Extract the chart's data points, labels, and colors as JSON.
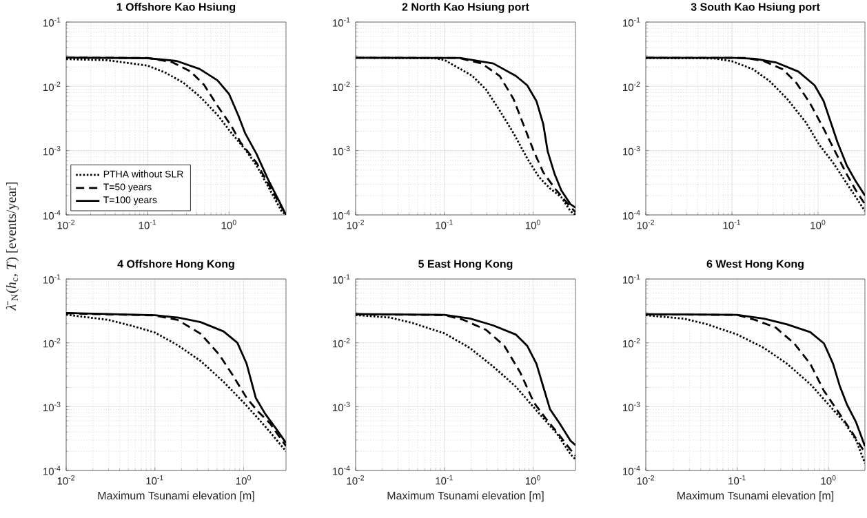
{
  "chart_data": [
    {
      "type": "line",
      "title": "1 Offshore Kao Hsiung",
      "ylabel": "*λ̄*$_{N}$(*h*$_{c}$, *T*) [events/year]",
      "log": "xy",
      "grid": true,
      "legend": "bottom left",
      "xlim": [
        0.01,
        5
      ],
      "ylim": [
        0.0001,
        0.1
      ],
      "xticks": [
        {
          "value": 0.01,
          "label": "10$^{-2}$"
        },
        {
          "value": 0.1,
          "label": "10$^{-1}$"
        },
        {
          "value": 1,
          "label": "10$^{0}$"
        }
      ],
      "yticks": [
        {
          "value": 0.0001,
          "label": "10$^{-4}$"
        },
        {
          "value": 0.001,
          "label": "10$^{-3}$"
        },
        {
          "value": 0.01,
          "label": "10$^{-2}$"
        },
        {
          "value": 0.1,
          "label": "10$^{-1}$"
        }
      ],
      "series": [
        {
          "name": "PTHA without SLR",
          "color": "#000000",
          "line_style": "dotted",
          "x": [
            0.01,
            0.032,
            0.1,
            0.164,
            0.275,
            0.435,
            0.72,
            1.07,
            1.57,
            2.17,
            3.0,
            4.4,
            5
          ],
          "values": [
            0.0265,
            0.0255,
            0.021,
            0.0164,
            0.0114,
            0.007,
            0.0036,
            0.00188,
            0.00105,
            0.00059,
            0.00028,
            0.000115,
            0.0001
          ]
        },
        {
          "name": "T=50 years",
          "color": "#000000",
          "line_style": "dashed",
          "x": [
            0.01,
            0.1,
            0.2,
            0.335,
            0.494,
            0.72,
            1.07,
            1.38,
            2.17,
            3.0,
            5
          ],
          "values": [
            0.028,
            0.0276,
            0.0238,
            0.0171,
            0.0105,
            0.005,
            0.0024,
            0.00135,
            0.00065,
            0.00031,
            0.0001
          ]
        },
        {
          "name": "T=100 years",
          "color": "#000000",
          "line_style": "solid",
          "x": [
            0.01,
            0.1,
            0.227,
            0.435,
            0.72,
            1.0,
            1.29,
            1.57,
            2.17,
            3.0,
            4.15,
            5
          ],
          "values": [
            0.028,
            0.0274,
            0.0248,
            0.0186,
            0.0124,
            0.0076,
            0.0036,
            0.00188,
            0.00089,
            0.00036,
            0.00016,
            0.0001
          ]
        }
      ]
    },
    {
      "type": "line",
      "title": "2 North Kao Hsiung port",
      "log": "xy",
      "grid": true,
      "xlim": [
        0.01,
        3
      ],
      "ylim": [
        0.0001,
        0.1
      ],
      "xticks": [
        {
          "value": 0.01,
          "label": "10$^{-2}$"
        },
        {
          "value": 0.1,
          "label": "10$^{-1}$"
        },
        {
          "value": 1,
          "label": "10$^{0}$"
        }
      ],
      "yticks": [
        {
          "value": 0.0001,
          "label": "10$^{-4}$"
        },
        {
          "value": 0.001,
          "label": "10$^{-3}$"
        },
        {
          "value": 0.01,
          "label": "10$^{-2}$"
        },
        {
          "value": 0.1,
          "label": "10$^{-1}$"
        }
      ],
      "series": [
        {
          "color": "#000000",
          "line_style": "dotted",
          "x": [
            0.01,
            0.08,
            0.1,
            0.145,
            0.207,
            0.295,
            0.42,
            0.6,
            0.857,
            1.16,
            1.54,
            2.08,
            2.63,
            3
          ],
          "values": [
            0.0279,
            0.0272,
            0.0257,
            0.0193,
            0.0145,
            0.0089,
            0.0042,
            0.00188,
            0.00076,
            0.00039,
            0.00026,
            0.000188,
            0.000115,
            0.0001
          ]
        },
        {
          "color": "#000000",
          "line_style": "dashed",
          "x": [
            0.01,
            0.145,
            0.263,
            0.42,
            0.6,
            0.81,
            1.02,
            1.3,
            1.75,
            2.48,
            3
          ],
          "values": [
            0.0279,
            0.0276,
            0.0227,
            0.0145,
            0.0064,
            0.0022,
            0.00097,
            0.00046,
            0.00026,
            0.000147,
            0.00011
          ]
        },
        {
          "color": "#000000",
          "line_style": "solid",
          "x": [
            0.01,
            0.15,
            0.355,
            0.64,
            0.857,
            1.09,
            1.3,
            1.46,
            1.75,
            2.08,
            2.63,
            3
          ],
          "values": [
            0.0279,
            0.0276,
            0.0227,
            0.0145,
            0.0104,
            0.0059,
            0.00259,
            0.00097,
            0.00043,
            0.00024,
            0.000147,
            0.00013
          ]
        }
      ]
    },
    {
      "type": "line",
      "title": "3 South Kao Hsiung port",
      "log": "xy",
      "grid": true,
      "xlim": [
        0.01,
        3.5
      ],
      "ylim": [
        0.0001,
        0.1
      ],
      "xticks": [
        {
          "value": 0.01,
          "label": "10$^{-2}$"
        },
        {
          "value": 0.1,
          "label": "10$^{-1}$"
        },
        {
          "value": 1,
          "label": "10$^{0}$"
        }
      ],
      "yticks": [
        {
          "value": 0.0001,
          "label": "10$^{-4}$"
        },
        {
          "value": 0.001,
          "label": "10$^{-3}$"
        },
        {
          "value": 0.01,
          "label": "10$^{-2}$"
        },
        {
          "value": 0.1,
          "label": "10$^{-1}$"
        }
      ],
      "series": [
        {
          "color": "#000000",
          "line_style": "dotted",
          "x": [
            0.01,
            0.062,
            0.1,
            0.175,
            0.27,
            0.437,
            0.715,
            1.03,
            1.49,
            2.15,
            2.75,
            3.5
          ],
          "values": [
            0.0275,
            0.0272,
            0.0246,
            0.0185,
            0.0123,
            0.0064,
            0.0028,
            0.00124,
            0.00065,
            0.00031,
            0.000188,
            0.000115
          ]
        },
        {
          "color": "#000000",
          "line_style": "dashed",
          "x": [
            0.01,
            0.145,
            0.237,
            0.387,
            0.56,
            0.81,
            1.16,
            1.68,
            2.15,
            2.75,
            3.5
          ],
          "values": [
            0.0279,
            0.0277,
            0.0246,
            0.0185,
            0.0113,
            0.0054,
            0.0022,
            0.00082,
            0.00043,
            0.00024,
            0.000147
          ]
        },
        {
          "color": "#000000",
          "line_style": "solid",
          "x": [
            0.01,
            0.1,
            0.186,
            0.323,
            0.59,
            0.91,
            1.16,
            1.4,
            1.68,
            2.15,
            2.75,
            3.5
          ],
          "values": [
            0.0279,
            0.0278,
            0.0268,
            0.0236,
            0.017,
            0.0104,
            0.0059,
            0.0028,
            0.00135,
            0.00059,
            0.00033,
            0.0002
          ]
        }
      ]
    },
    {
      "type": "line",
      "title": "4 Offshore Hong Kong",
      "xlabel": "Maximum Tsunami elevation [m]",
      "log": "xy",
      "grid": true,
      "xlim": [
        0.01,
        3
      ],
      "ylim": [
        0.0001,
        0.1
      ],
      "xticks": [
        {
          "value": 0.01,
          "label": "10$^{-2}$"
        },
        {
          "value": 0.1,
          "label": "10$^{-1}$"
        },
        {
          "value": 1,
          "label": "10$^{0}$"
        }
      ],
      "yticks": [
        {
          "value": 0.0001,
          "label": "10$^{-4}$"
        },
        {
          "value": 0.001,
          "label": "10$^{-3}$"
        },
        {
          "value": 0.01,
          "label": "10$^{-2}$"
        },
        {
          "value": 0.1,
          "label": "10$^{-1}$"
        }
      ],
      "series": [
        {
          "color": "#000000",
          "line_style": "dotted",
          "x": [
            0.01,
            0.0297,
            0.054,
            0.1,
            0.18,
            0.327,
            0.594,
            1.0,
            1.46,
            1.98,
            3
          ],
          "values": [
            0.0276,
            0.0229,
            0.0186,
            0.0145,
            0.0092,
            0.0052,
            0.00245,
            0.00116,
            0.00065,
            0.0004,
            0.0002
          ]
        },
        {
          "color": "#000000",
          "line_style": "dashed",
          "x": [
            0.01,
            0.1,
            0.18,
            0.327,
            0.527,
            0.755,
            1.08,
            1.46,
            1.98,
            3
          ],
          "values": [
            0.029,
            0.0268,
            0.0229,
            0.0139,
            0.0066,
            0.0031,
            0.00137,
            0.00083,
            0.00055,
            0.00024
          ]
        },
        {
          "color": "#000000",
          "line_style": "solid",
          "x": [
            0.01,
            0.1,
            0.18,
            0.327,
            0.594,
            0.85,
            1.08,
            1.37,
            1.75,
            2.35,
            3
          ],
          "values": [
            0.0294,
            0.027,
            0.0249,
            0.0211,
            0.0151,
            0.01,
            0.0047,
            0.00137,
            0.00077,
            0.00044,
            0.00027
          ]
        }
      ]
    },
    {
      "type": "line",
      "title": "5 East Hong Kong",
      "xlabel": "Maximum Tsunami elevation [m]",
      "log": "xy",
      "grid": true,
      "xlim": [
        0.01,
        3
      ],
      "ylim": [
        0.0001,
        0.1
      ],
      "xticks": [
        {
          "value": 0.01,
          "label": "10$^{-2}$"
        },
        {
          "value": 0.1,
          "label": "10$^{-1}$"
        },
        {
          "value": 1,
          "label": "10$^{0}$"
        }
      ],
      "yticks": [
        {
          "value": 0.0001,
          "label": "10$^{-4}$"
        },
        {
          "value": 0.001,
          "label": "10$^{-3}$"
        },
        {
          "value": 0.01,
          "label": "10$^{-2}$"
        },
        {
          "value": 0.1,
          "label": "10$^{-1}$"
        }
      ],
      "series": [
        {
          "color": "#000000",
          "line_style": "dotted",
          "x": [
            0.01,
            0.0244,
            0.044,
            0.1,
            0.194,
            0.352,
            0.637,
            1.0,
            1.38,
            1.85,
            2.65,
            3
          ],
          "values": [
            0.0272,
            0.0249,
            0.0204,
            0.0141,
            0.0083,
            0.0043,
            0.00206,
            0.001,
            0.0006,
            0.00038,
            0.000178,
            0.00015
          ]
        },
        {
          "color": "#000000",
          "line_style": "dashed",
          "x": [
            0.01,
            0.1,
            0.163,
            0.294,
            0.473,
            0.718,
            1.02,
            1.38,
            1.85,
            2.65,
            3
          ],
          "values": [
            0.028,
            0.0272,
            0.023,
            0.016,
            0.009,
            0.0034,
            0.00116,
            0.00066,
            0.0004,
            0.00021,
            0.00017
          ]
        },
        {
          "color": "#000000",
          "line_style": "solid",
          "x": [
            0.01,
            0.1,
            0.194,
            0.352,
            0.637,
            0.857,
            1.09,
            1.3,
            1.55,
            1.97,
            2.65,
            3
          ],
          "values": [
            0.0283,
            0.0274,
            0.024,
            0.0188,
            0.0135,
            0.009,
            0.0047,
            0.00206,
            0.00091,
            0.00056,
            0.00029,
            0.00025
          ]
        }
      ]
    },
    {
      "type": "line",
      "title": "6 West Hong Kong",
      "xlabel": "Maximum Tsunami elevation [m]",
      "log": "xy",
      "grid": true,
      "xlim": [
        0.01,
        2.5
      ],
      "ylim": [
        0.0001,
        0.1
      ],
      "xticks": [
        {
          "value": 0.01,
          "label": "10$^{-2}$"
        },
        {
          "value": 0.1,
          "label": "10$^{-1}$"
        },
        {
          "value": 1,
          "label": "10$^{0}$"
        }
      ],
      "yticks": [
        {
          "value": 0.0001,
          "label": "10$^{-4}$"
        },
        {
          "value": 0.001,
          "label": "10$^{-3}$"
        },
        {
          "value": 0.01,
          "label": "10$^{-2}$"
        },
        {
          "value": 0.1,
          "label": "10$^{-1}$"
        }
      ],
      "series": [
        {
          "color": "#000000",
          "line_style": "dotted",
          "x": [
            0.01,
            0.0263,
            0.047,
            0.1,
            0.197,
            0.351,
            0.63,
            1.0,
            1.49,
            2.0,
            2.5
          ],
          "values": [
            0.027,
            0.0239,
            0.0195,
            0.0135,
            0.0083,
            0.0047,
            0.00226,
            0.00108,
            0.00057,
            0.0003,
            0.00013
          ]
        },
        {
          "color": "#000000",
          "line_style": "dashed",
          "x": [
            0.01,
            0.1,
            0.157,
            0.265,
            0.42,
            0.63,
            0.89,
            1.26,
            1.78,
            2.5
          ],
          "values": [
            0.028,
            0.0273,
            0.0229,
            0.0173,
            0.0098,
            0.0047,
            0.00177,
            0.00085,
            0.00041,
            0.00019
          ]
        },
        {
          "color": "#000000",
          "line_style": "solid",
          "x": [
            0.01,
            0.1,
            0.197,
            0.351,
            0.63,
            0.89,
            1.12,
            1.33,
            1.59,
            2.0,
            2.5
          ],
          "values": [
            0.0281,
            0.0274,
            0.0239,
            0.0195,
            0.0147,
            0.0098,
            0.0047,
            0.00208,
            0.00108,
            0.00057,
            0.00024
          ]
        }
      ]
    }
  ]
}
